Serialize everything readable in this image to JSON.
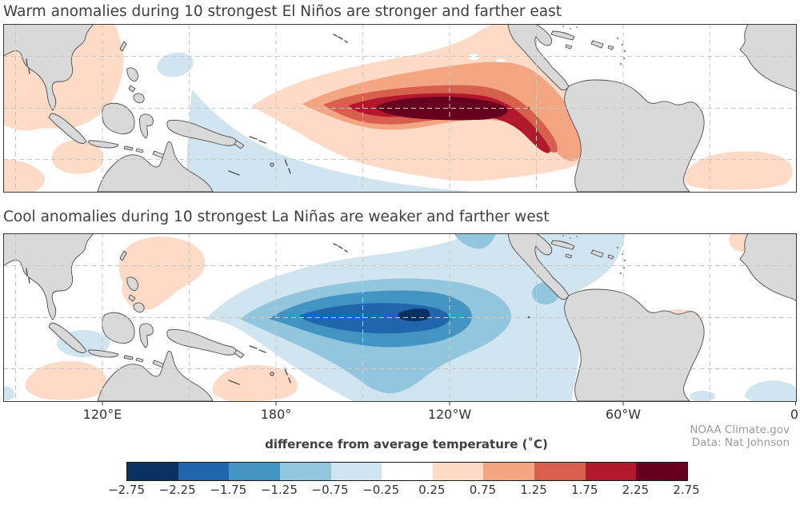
{
  "figure": {
    "top_panel": {
      "title": "Warm anomalies during 10 strongest El Niños are stronger and farther east"
    },
    "bottom_panel": {
      "title": "Cool anomalies during 10 strongest La Niñas are weaker and farther west"
    },
    "axis": {
      "tick_labels": [
        "120°E",
        "180°",
        "120°W",
        "60°W",
        "0"
      ]
    },
    "credit": {
      "line1": "NOAA Climate.gov",
      "line2": "Data: Nat Johnson"
    },
    "colorbar": {
      "title": "difference from average temperature (˚C)",
      "tick_labels": [
        "−2.75",
        "−2.25",
        "−1.75",
        "−1.25",
        "−0.75",
        "−0.25",
        "0.25",
        "0.75",
        "1.25",
        "1.75",
        "2.25",
        "2.75"
      ],
      "colors": [
        "#0a3161",
        "#2166ac",
        "#4393c3",
        "#92c5de",
        "#d1e5f0",
        "#ffffff",
        "#fddbc7",
        "#f4a582",
        "#d6604d",
        "#b2182b",
        "#67001f"
      ]
    },
    "map_style": {
      "ocean_color": "#ffffff",
      "land_color": "#d9d9d9",
      "coast_color": "#4d4d4d",
      "grid_color": "#c9c9c9"
    }
  },
  "chart_data": [
    {
      "type": "heatmap",
      "title": "Warm anomalies during 10 strongest El Niños are stronger and farther east",
      "variable": "sea surface temperature difference from average (°C)",
      "region": "Tropical Indo-Pacific and Atlantic, approx 85°E–0° longitude, approx 30°N–30°S latitude",
      "x_ticks": [
        "120°E",
        "180°",
        "120°W",
        "60°W",
        "0"
      ],
      "grid": true,
      "contour_levels": [
        -2.75,
        -2.25,
        -1.75,
        -1.25,
        -0.75,
        -0.25,
        0.25,
        0.75,
        1.25,
        1.75,
        2.25,
        2.75
      ],
      "peak_value_range_c": [
        2.25,
        2.75
      ],
      "peak_location": "equatorial Pacific near 150°W–110°W, warm tongue extends east to the South American coast",
      "pattern": "warm anomaly >0.25°C spans ~175°E to the Peru coast along the equator; weak warm patches over Southeast Asia, south of Java, and the subtropical South Atlantic off Brazil; weak cool band southwest Pacific and north-central Pacific"
    },
    {
      "type": "heatmap",
      "title": "Cool anomalies during 10 strongest La Niñas are weaker and farther west",
      "variable": "sea surface temperature difference from average (°C)",
      "region": "Tropical Indo-Pacific and Atlantic, approx 85°E–0° longitude, approx 30°N–30°S latitude",
      "x_ticks": [
        "120°E",
        "180°",
        "120°W",
        "60°W",
        "0"
      ],
      "grid": true,
      "contour_levels": [
        -2.75,
        -2.25,
        -1.75,
        -1.25,
        -0.75,
        -0.25,
        0.25,
        0.75,
        1.25,
        1.75,
        2.25,
        2.75
      ],
      "peak_value_range_c": [
        -2.75,
        -2.25
      ],
      "peak_location": "small core near the dateline to 150°W on the equator; cool tongue ends well west of South America",
      "pattern": "cool anomaly <-0.25°C spans ~165°E to ~100°W and spreads over the Caribbean; weak warm patches northwest Pacific near Philippines, southeast Indian Ocean, south-central Pacific, and off northeast Brazil"
    }
  ]
}
